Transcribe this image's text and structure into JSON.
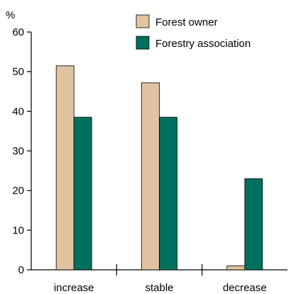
{
  "chart_data": {
    "type": "bar",
    "categories": [
      "increase",
      "stable",
      "decrease"
    ],
    "series": [
      {
        "name": "Forest owner",
        "values": [
          51.5,
          47.2,
          1.0
        ],
        "color": "#e0c4a2"
      },
      {
        "name": "Forestry association",
        "values": [
          38.5,
          38.5,
          23.0
        ],
        "color": "#00705e"
      }
    ],
    "ylim": [
      0,
      60
    ],
    "yticks": [
      "0",
      "10",
      "20",
      "30",
      "40",
      "50",
      "60"
    ],
    "y_unit": "%",
    "legend_position": "top-right",
    "grid": false
  }
}
